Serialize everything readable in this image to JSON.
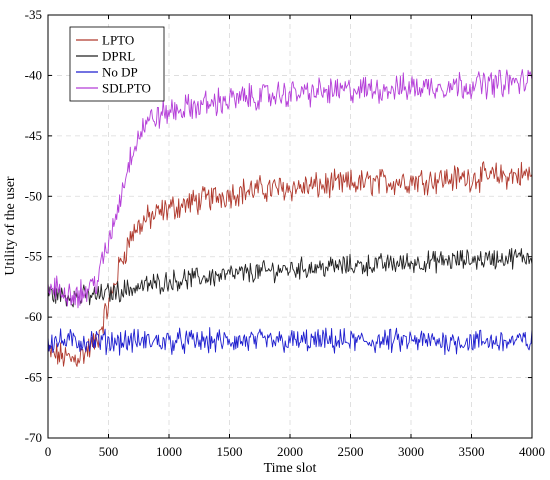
{
  "chart_data": {
    "type": "line",
    "xlabel": "Time slot",
    "ylabel": "Utility of the user",
    "xlim": [
      0,
      4000
    ],
    "ylim": [
      -70,
      -35
    ],
    "xticks": [
      0,
      500,
      1000,
      1500,
      2000,
      2500,
      3000,
      3500,
      4000
    ],
    "yticks": [
      -70,
      -65,
      -60,
      -55,
      -50,
      -45,
      -40,
      -35
    ],
    "grid": true,
    "legend_position": "top-left",
    "x": [
      0,
      100,
      200,
      300,
      400,
      500,
      600,
      700,
      800,
      900,
      1000,
      1200,
      1400,
      1600,
      1800,
      2000,
      2200,
      2400,
      2600,
      2800,
      3000,
      3200,
      3400,
      3600,
      3800,
      4000
    ],
    "series": [
      {
        "name": "LPTO",
        "color": "#b03a2e",
        "values": [
          -63.0,
          -63.2,
          -63.5,
          -63.0,
          -62.0,
          -59.0,
          -55.5,
          -53.0,
          -52.0,
          -51.5,
          -51.0,
          -50.5,
          -50.0,
          -49.6,
          -49.4,
          -49.3,
          -49.2,
          -49.0,
          -48.9,
          -48.8,
          -48.7,
          -48.6,
          -48.5,
          -48.4,
          -48.3,
          -48.2
        ],
        "noise": 0.9
      },
      {
        "name": "DPRL",
        "color": "#222222",
        "values": [
          -58.0,
          -58.2,
          -58.3,
          -58.3,
          -58.2,
          -58.0,
          -57.8,
          -57.6,
          -57.4,
          -57.2,
          -57.0,
          -56.8,
          -56.6,
          -56.4,
          -56.2,
          -56.0,
          -55.9,
          -55.8,
          -55.7,
          -55.6,
          -55.5,
          -55.4,
          -55.3,
          -55.2,
          -55.1,
          -55.0
        ],
        "noise": 0.7
      },
      {
        "name": "No DP",
        "color": "#1f1fcf",
        "values": [
          -62.0,
          -62.0,
          -62.0,
          -62.0,
          -62.0,
          -62.0,
          -62.0,
          -62.0,
          -62.0,
          -62.0,
          -62.0,
          -62.0,
          -62.0,
          -62.0,
          -62.0,
          -62.0,
          -62.0,
          -62.0,
          -62.0,
          -62.0,
          -62.0,
          -62.0,
          -62.0,
          -62.0,
          -62.0,
          -62.0
        ],
        "noise": 0.8
      },
      {
        "name": "SDLPTO",
        "color": "#b43ed8",
        "values": [
          -57.5,
          -57.8,
          -58.0,
          -58.0,
          -57.0,
          -54.0,
          -50.0,
          -46.0,
          -44.0,
          -43.4,
          -43.0,
          -42.6,
          -42.2,
          -41.9,
          -41.7,
          -41.5,
          -41.4,
          -41.3,
          -41.2,
          -41.1,
          -41.0,
          -40.9,
          -40.8,
          -40.7,
          -40.6,
          -40.5
        ],
        "noise": 0.9
      }
    ]
  }
}
